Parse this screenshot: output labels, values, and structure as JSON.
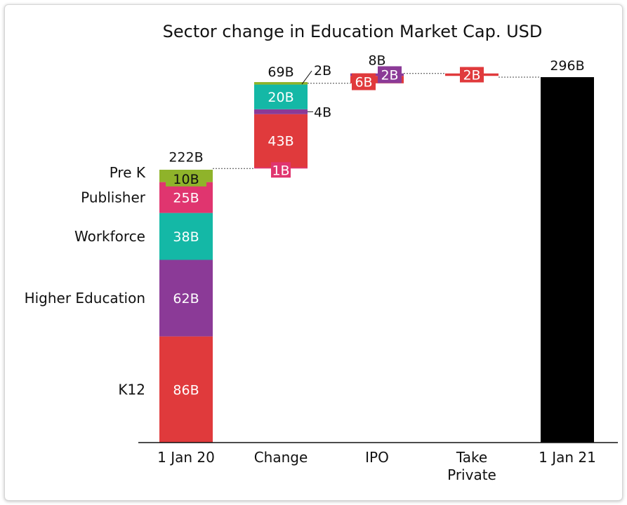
{
  "chart_data": {
    "type": "bar",
    "title": "Sector change in Education Market Cap. USD",
    "xlabel": "",
    "ylabel": "",
    "ylim": [
      0,
      296
    ],
    "grid": false,
    "legend": "none",
    "categories": [
      "1 Jan 20",
      "Change",
      "IPO",
      "Take Private",
      "1 Jan 21"
    ],
    "category_lines": [
      [
        "1 Jan 20"
      ],
      [
        "Change"
      ],
      [
        "IPO"
      ],
      [
        "Take",
        "Private"
      ],
      [
        "1 Jan 21"
      ]
    ],
    "colors": {
      "K12": "#e03a3c",
      "Higher Education": "#8b3a97",
      "Workforce": "#14b8a6",
      "Publisher": "#e0356f",
      "Pre K": "#8fb32a",
      "Total": "#000000"
    },
    "start": {
      "category": "1 Jan 20",
      "total": 222,
      "total_label": "222B",
      "segments": [
        {
          "name": "K12",
          "value": 86,
          "label": "86B"
        },
        {
          "name": "Higher Education",
          "value": 62,
          "label": "62B"
        },
        {
          "name": "Workforce",
          "value": 38,
          "label": "38B"
        },
        {
          "name": "Publisher",
          "value": 25,
          "label": "25B"
        },
        {
          "name": "Pre K",
          "value": 10,
          "label": "10B"
        }
      ]
    },
    "change": {
      "category": "Change",
      "total": 69,
      "total_label": "69B",
      "segments": [
        {
          "name": "Publisher",
          "value": 1,
          "label": "1B"
        },
        {
          "name": "K12",
          "value": 43,
          "label": "43B"
        },
        {
          "name": "Higher Education",
          "value": 4,
          "label": "4B"
        },
        {
          "name": "Workforce",
          "value": 20,
          "label": "20B"
        },
        {
          "name": "Pre K",
          "value": 2,
          "label": "2B"
        }
      ]
    },
    "ipo": {
      "category": "IPO",
      "total": 8,
      "total_label": "8B",
      "segments": [
        {
          "name": "K12",
          "value": 6,
          "label": "6B"
        },
        {
          "name": "Higher Education",
          "value": 2,
          "label": "2B"
        }
      ]
    },
    "take_private": {
      "category": "Take Private",
      "segments": [
        {
          "name": "K12",
          "value": -2,
          "label": "2B"
        }
      ]
    },
    "end": {
      "category": "1 Jan 21",
      "total": 296,
      "total_label": "296B"
    }
  }
}
